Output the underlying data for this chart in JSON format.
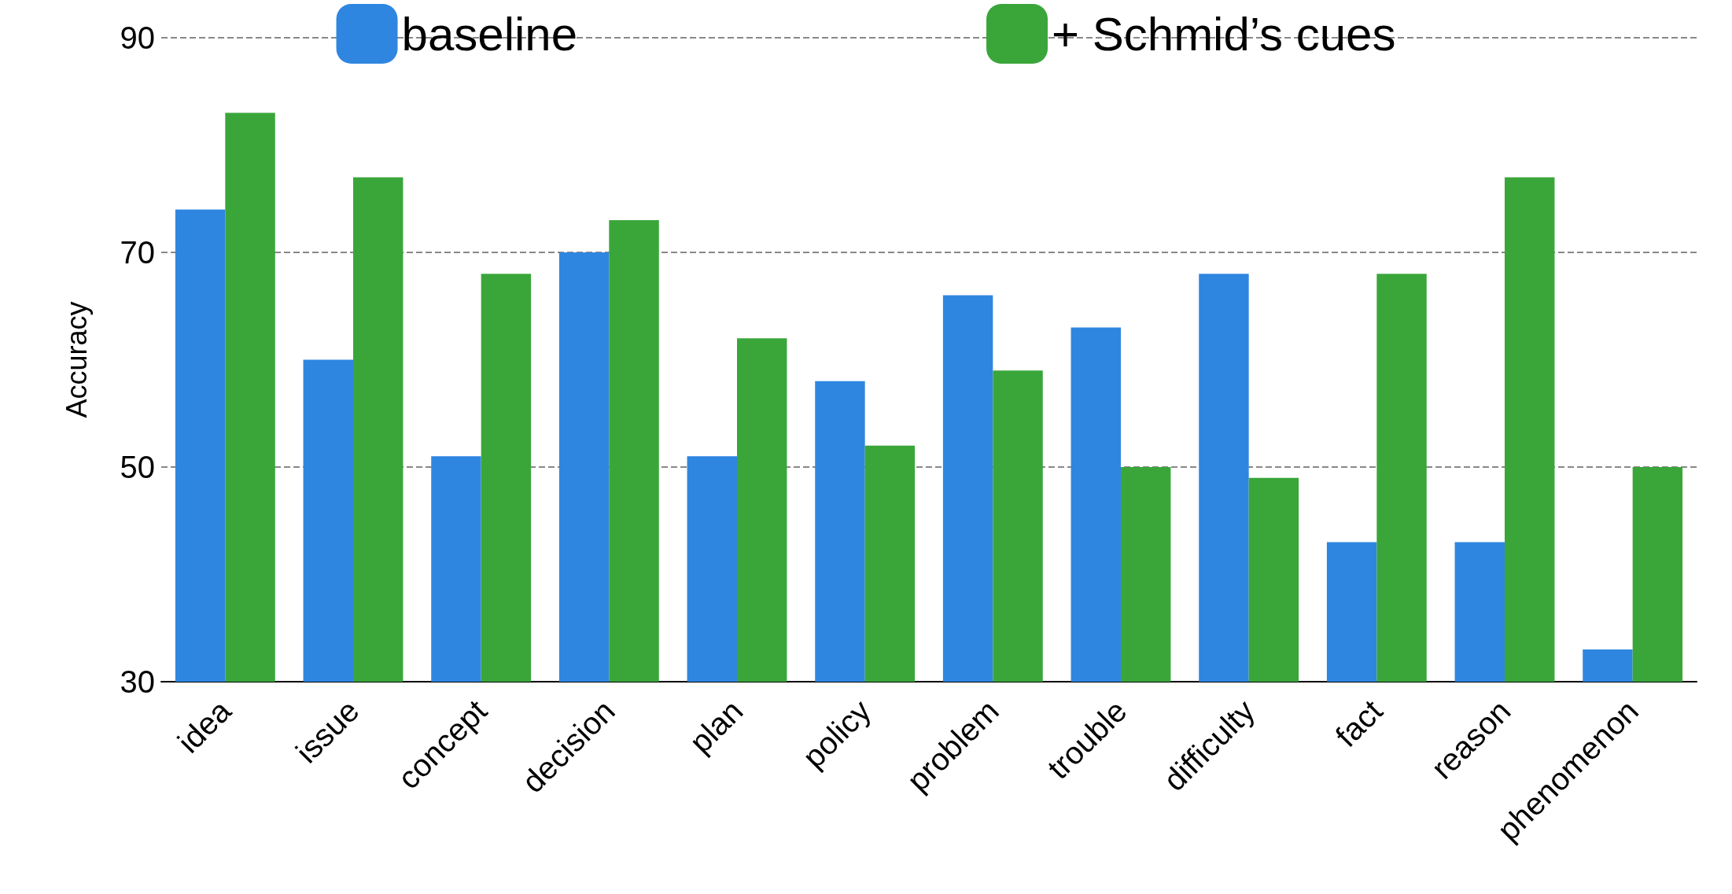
{
  "chart_data": {
    "type": "bar",
    "ylabel": "Accuracy",
    "categories": [
      "idea",
      "issue",
      "concept",
      "decision",
      "plan",
      "policy",
      "problem",
      "trouble",
      "difficulty",
      "fact",
      "reason",
      "phenomenon"
    ],
    "series": [
      {
        "name": "baseline",
        "color": "#2f86e0",
        "values": [
          74,
          60,
          51,
          70,
          51,
          58,
          66,
          63,
          68,
          43,
          43,
          33
        ]
      },
      {
        "name": "+ Schmid’s cues",
        "color": "#3aa63a",
        "values": [
          83,
          77,
          68,
          73,
          62,
          52,
          59,
          50,
          49,
          68,
          77,
          50
        ]
      }
    ],
    "ylim": [
      30,
      90
    ],
    "yticks": [
      30,
      50,
      70,
      90
    ],
    "grid": "y",
    "legend": "top"
  }
}
